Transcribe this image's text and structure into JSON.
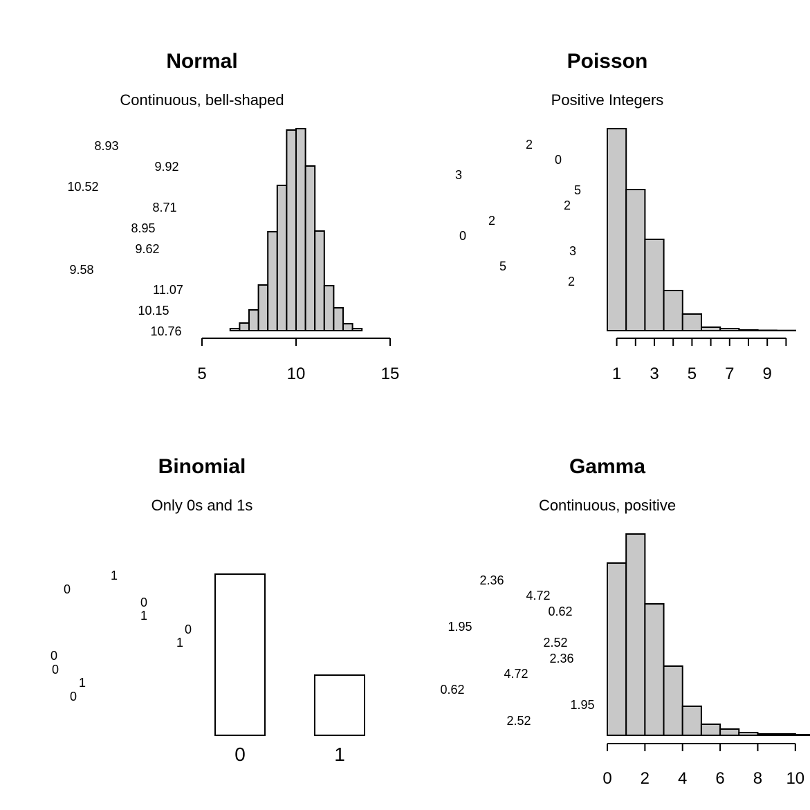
{
  "chart_data": [
    {
      "type": "bar",
      "panel": "top-left",
      "title": "Normal",
      "subtitle": "Continuous, bell-shaped",
      "fill": "#c8c8c8",
      "bins": [
        6.5,
        7,
        7.5,
        8,
        8.5,
        9,
        9.5,
        10,
        10.5,
        11,
        11.5,
        12,
        12.5,
        13,
        13.5
      ],
      "values": [
        3,
        11,
        30,
        66,
        143,
        210,
        290,
        292,
        238,
        144,
        65,
        33,
        10,
        3
      ],
      "xlim": [
        5,
        15
      ],
      "xticks": [
        5,
        10,
        15
      ],
      "xtick_labels": [
        "5",
        "10",
        "15"
      ],
      "annotations": [
        "8.93",
        "9.92",
        "10.52",
        "8.71",
        "8.95",
        "9.62",
        "9.58",
        "11.07",
        "10.15",
        "10.76"
      ]
    },
    {
      "type": "bar",
      "panel": "top-right",
      "title": "Poisson",
      "subtitle": "Positive Integers",
      "fill": "#c8c8c8",
      "bins": [
        0.5,
        1.5,
        2.5,
        3.5,
        4.5,
        5.5,
        6.5,
        7.5,
        8.5,
        9.5,
        10.5
      ],
      "values": [
        292,
        204,
        132,
        58,
        24,
        5,
        3,
        1,
        0.5,
        0.3
      ],
      "xlim": [
        0.5,
        10.5
      ],
      "xticks": [
        1,
        2,
        3,
        4,
        5,
        6,
        7,
        8,
        9,
        10
      ],
      "xtick_labels": [
        "1",
        "",
        "3",
        "",
        "5",
        "",
        "7",
        "",
        "9",
        ""
      ],
      "annotations": [
        "2",
        "0",
        "3",
        "5",
        "2",
        "2",
        "0",
        "3",
        "5",
        "2"
      ]
    },
    {
      "type": "bar",
      "panel": "bottom-left",
      "title": "Binomial",
      "subtitle": "Only 0s and 1s",
      "fill": "#ffffff",
      "categories": [
        "0",
        "1"
      ],
      "values": [
        233,
        87
      ],
      "annotations": [
        "1",
        "0",
        "0",
        "1",
        "0",
        "1",
        "0",
        "0",
        "1",
        "0"
      ]
    },
    {
      "type": "bar",
      "panel": "bottom-right",
      "title": "Gamma",
      "subtitle": "Continuous, positive",
      "fill": "#c8c8c8",
      "bins": [
        0,
        1,
        2,
        3,
        4,
        5,
        6,
        7,
        8,
        9,
        10,
        11
      ],
      "values": [
        249,
        291,
        190,
        100,
        42,
        16,
        9,
        4,
        2,
        2,
        1
      ],
      "xlim": [
        0,
        11
      ],
      "xticks": [
        0,
        2,
        4,
        6,
        8,
        10
      ],
      "xtick_labels": [
        "0",
        "2",
        "4",
        "6",
        "8",
        "10"
      ],
      "annotations": [
        "2.36",
        "4.72",
        "0.62",
        "1.95",
        "2.52",
        "2.36",
        "4.72",
        "0.62",
        "1.95",
        "2.52"
      ]
    }
  ]
}
